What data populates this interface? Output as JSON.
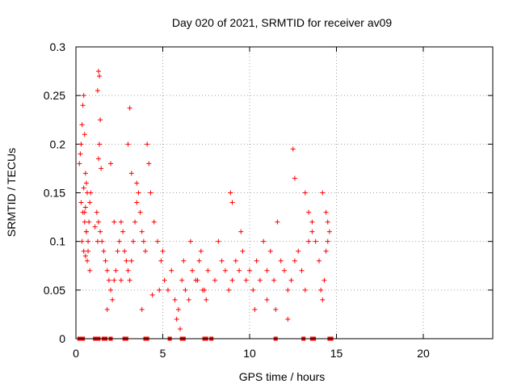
{
  "chart_data": {
    "type": "scatter",
    "title": "Day 020 of 2021, SRMTID for receiver av09",
    "xlabel": "GPS time / hours",
    "ylabel": "SRMTID / TECUs",
    "xlim": [
      0,
      24
    ],
    "ylim": [
      0,
      0.3
    ],
    "xticks": [
      0,
      5,
      10,
      15,
      20
    ],
    "xtick_labels": [
      "0",
      "5",
      "10",
      "15",
      "20"
    ],
    "yticks": [
      0,
      0.05,
      0.1,
      0.15,
      0.2,
      0.25,
      0.3
    ],
    "ytick_labels": [
      "0",
      "0.05",
      "0.1",
      "0.15",
      "0.2",
      "0.25",
      "0.3"
    ],
    "grid": true,
    "marker": "+",
    "color": "#ff0000",
    "series": [
      {
        "name": "SRMTID",
        "x": [
          0.2,
          0.25,
          0.3,
          0.35,
          0.4,
          0.45,
          0.5,
          0.55,
          0.6,
          0.65,
          0.3,
          0.4,
          0.5,
          0.6,
          0.35,
          0.45,
          0.55,
          0.65,
          0.7,
          0.75,
          0.8,
          0.85,
          0.5,
          0.6,
          0.7,
          0.8,
          0.45,
          0.55,
          1.3,
          1.35,
          1.25,
          1.4,
          1.35,
          1.3,
          1.45,
          1.2,
          1.3,
          1.4,
          1.25,
          1.1,
          1.5,
          1.6,
          1.7,
          1.8,
          1.9,
          2.0,
          2.1,
          2.2,
          2.3,
          2.4,
          2.5,
          2.6,
          2.7,
          2.8,
          2.9,
          3.0,
          3.1,
          3.2,
          3.3,
          3.4,
          3.5,
          3.6,
          3.7,
          3.8,
          3.9,
          4.0,
          2.2,
          2.0,
          3.1,
          3.0,
          3.2,
          3.5,
          4.1,
          4.2,
          4.3,
          4.5,
          4.7,
          4.9,
          5.0,
          5.1,
          5.3,
          5.5,
          5.7,
          5.9,
          6.1,
          6.3,
          6.5,
          6.7,
          6.9,
          7.1,
          7.3,
          7.5,
          7.2,
          6.0,
          5.8,
          6.2,
          6.6,
          7.0,
          7.4,
          7.6,
          8.0,
          8.2,
          8.4,
          8.6,
          8.8,
          9.0,
          9.2,
          9.4,
          9.6,
          9.8,
          10.0,
          10.2,
          10.4,
          10.6,
          10.8,
          11.0,
          11.2,
          11.4,
          11.6,
          11.8,
          12.0,
          12.2,
          12.4,
          12.6,
          12.8,
          13.0,
          13.2,
          13.4,
          13.6,
          12.5,
          12.6,
          13.2,
          13.4,
          13.6,
          13.8,
          14.0,
          14.1,
          14.2,
          14.3,
          14.4,
          14.5,
          14.6,
          14.2,
          14.4,
          14.5,
          8.9,
          9.0,
          9.5,
          10.3,
          11.0,
          11.5,
          12.2,
          3.8,
          4.4,
          4.8,
          2.6,
          1.8
        ],
        "y": [
          0.18,
          0.19,
          0.2,
          0.22,
          0.24,
          0.25,
          0.21,
          0.17,
          0.16,
          0.15,
          0.14,
          0.13,
          0.12,
          0.11,
          0.1,
          0.09,
          0.085,
          0.08,
          0.1,
          0.12,
          0.14,
          0.15,
          0.13,
          0.11,
          0.09,
          0.07,
          0.155,
          0.135,
          0.275,
          0.27,
          0.255,
          0.225,
          0.2,
          0.185,
          0.175,
          0.13,
          0.12,
          0.11,
          0.1,
          0.115,
          0.1,
          0.09,
          0.08,
          0.07,
          0.06,
          0.05,
          0.04,
          0.06,
          0.07,
          0.09,
          0.1,
          0.12,
          0.11,
          0.09,
          0.08,
          0.07,
          0.06,
          0.08,
          0.1,
          0.12,
          0.14,
          0.15,
          0.13,
          0.11,
          0.1,
          0.09,
          0.12,
          0.18,
          0.237,
          0.2,
          0.17,
          0.16,
          0.2,
          0.18,
          0.15,
          0.12,
          0.1,
          0.08,
          0.09,
          0.06,
          0.05,
          0.07,
          0.04,
          0.03,
          0.06,
          0.05,
          0.04,
          0.07,
          0.06,
          0.08,
          0.05,
          0.04,
          0.09,
          0.01,
          0.02,
          0.08,
          0.1,
          0.06,
          0.05,
          0.07,
          0.06,
          0.1,
          0.08,
          0.07,
          0.05,
          0.06,
          0.08,
          0.07,
          0.09,
          0.06,
          0.07,
          0.05,
          0.08,
          0.06,
          0.1,
          0.07,
          0.09,
          0.06,
          0.12,
          0.08,
          0.07,
          0.05,
          0.06,
          0.08,
          0.09,
          0.07,
          0.05,
          0.1,
          0.12,
          0.195,
          0.165,
          0.15,
          0.13,
          0.11,
          0.1,
          0.08,
          0.05,
          0.04,
          0.06,
          0.09,
          0.1,
          0.11,
          0.15,
          0.13,
          0.12,
          0.15,
          0.14,
          0.11,
          0.03,
          0.04,
          0.03,
          0.02,
          0.03,
          0.045,
          0.05,
          0.06,
          0.03
        ],
        "zero_markers_x": [
          0.2,
          0.4,
          1.1,
          1.2,
          1.3,
          1.6,
          1.7,
          2.0,
          2.8,
          2.9,
          4.0,
          4.1,
          5.4,
          6.1,
          6.2,
          7.4,
          7.5,
          7.8,
          11.5,
          13.1,
          13.6,
          13.7,
          14.6,
          14.7
        ]
      }
    ]
  }
}
